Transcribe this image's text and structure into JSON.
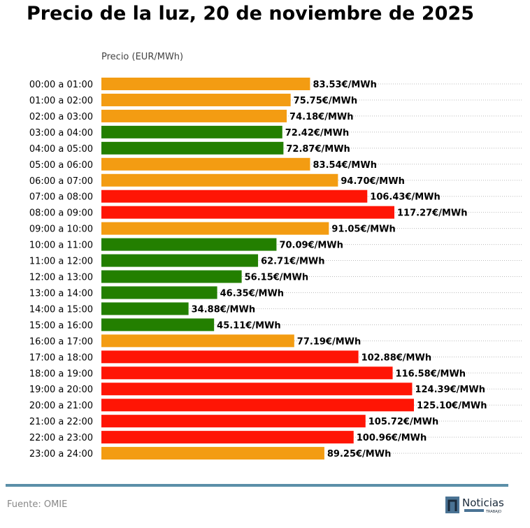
{
  "chart_data": {
    "type": "bar",
    "orientation": "horizontal",
    "title": "Precio de la luz, 20 de noviembre de 2025",
    "xlabel": "Precio (EUR/MWh)",
    "ylabel": "",
    "xlim": [
      0,
      125.1
    ],
    "grid": "horizontal dotted",
    "value_suffix": "€/MWh",
    "categories": [
      "00:00 a 01:00",
      "01:00 a 02:00",
      "02:00 a 03:00",
      "03:00 a 04:00",
      "04:00 a 05:00",
      "05:00 a 06:00",
      "06:00 a 07:00",
      "07:00 a 08:00",
      "08:00 a 09:00",
      "09:00 a 10:00",
      "10:00 a 11:00",
      "11:00 a 12:00",
      "12:00 a 13:00",
      "13:00 a 14:00",
      "14:00 a 15:00",
      "15:00 a 16:00",
      "16:00 a 17:00",
      "17:00 a 18:00",
      "18:00 a 19:00",
      "19:00 a 20:00",
      "20:00 a 21:00",
      "21:00 a 22:00",
      "22:00 a 23:00",
      "23:00 a 24:00"
    ],
    "values": [
      83.53,
      75.75,
      74.18,
      72.42,
      72.87,
      83.54,
      94.7,
      106.43,
      117.27,
      91.05,
      70.09,
      62.71,
      56.15,
      46.35,
      34.88,
      45.11,
      77.19,
      102.88,
      116.58,
      124.39,
      125.1,
      105.72,
      100.96,
      89.25
    ],
    "levels": [
      "mid",
      "mid",
      "mid",
      "low",
      "low",
      "mid",
      "mid",
      "high",
      "high",
      "mid",
      "low",
      "low",
      "low",
      "low",
      "low",
      "low",
      "mid",
      "high",
      "high",
      "high",
      "high",
      "high",
      "high",
      "mid"
    ],
    "colors": {
      "low": "#237f00",
      "mid": "#f39c12",
      "high": "#ff1505"
    }
  },
  "footer": {
    "source": "Fuente: OMIE",
    "logo_text": "Noticias",
    "logo_subtext": "TRABAJO"
  },
  "colors": {
    "rule": "#5b8fa8",
    "logo": "#4a7394"
  }
}
